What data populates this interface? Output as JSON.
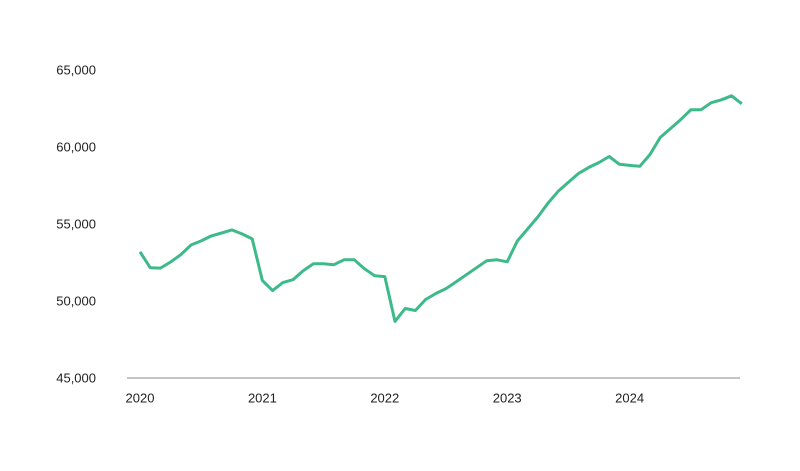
{
  "chart_data": {
    "type": "line",
    "categories": [
      "2020",
      null,
      null,
      null,
      null,
      null,
      null,
      null,
      null,
      null,
      null,
      null,
      "2021",
      null,
      null,
      null,
      null,
      null,
      null,
      null,
      null,
      null,
      null,
      null,
      "2022",
      null,
      null,
      null,
      null,
      null,
      null,
      null,
      null,
      null,
      null,
      null,
      "2023",
      null,
      null,
      null,
      null,
      null,
      null,
      null,
      null,
      null,
      null,
      null,
      "2024",
      null,
      null,
      null,
      null,
      null,
      null,
      null,
      null,
      null,
      null,
      null
    ],
    "series": [
      {
        "color": "#3dba8a",
        "values": [
          53260,
          52230,
          52200,
          52600,
          53070,
          53700,
          53970,
          54290,
          54480,
          54680,
          54420,
          54100,
          51390,
          50740,
          51260,
          51450,
          52030,
          52480,
          52480,
          52420,
          52740,
          52740,
          52160,
          51710,
          51650,
          48740,
          49580,
          49450,
          50160,
          50550,
          50870,
          51320,
          51770,
          52230,
          52680,
          52740,
          52610,
          53970,
          54740,
          55520,
          56420,
          57190,
          57770,
          58350,
          58740,
          59060,
          59450,
          58940,
          58870,
          58810,
          59580,
          60680,
          61260,
          61840,
          62480,
          62480,
          62940,
          63130,
          63390,
          62870
        ]
      }
    ],
    "ylim": [
      45000,
      65000
    ],
    "yticks": [
      {
        "value": 45000,
        "label": "45,000"
      },
      {
        "value": 50000,
        "label": "50,000"
      },
      {
        "value": 55000,
        "label": "55,000"
      },
      {
        "value": 60000,
        "label": "60,000"
      },
      {
        "value": 65000,
        "label": "65,000"
      }
    ],
    "grid": false
  }
}
